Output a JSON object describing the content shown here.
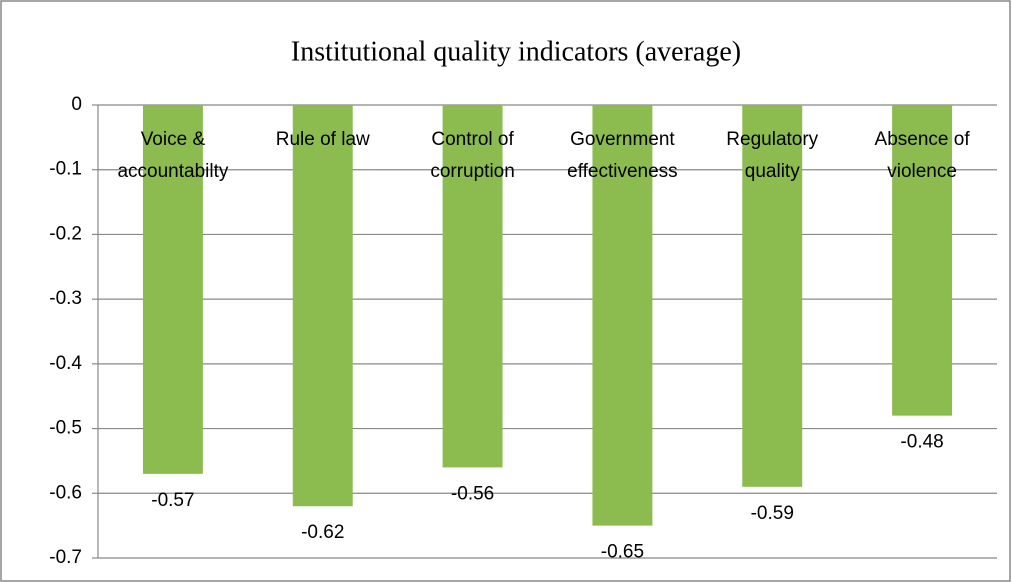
{
  "chart_data": {
    "type": "bar",
    "title": "Institutional quality indicators (average)",
    "categories": [
      "Voice &\naccountabilty",
      "Rule of law",
      "Control of\ncorruption",
      "Government\neffectiveness",
      "Regulatory\nquality",
      "Absence of\nviolence"
    ],
    "values": [
      -0.57,
      -0.62,
      -0.56,
      -0.65,
      -0.59,
      -0.48
    ],
    "color": "#8cbb50",
    "ylim": [
      -0.7,
      0
    ],
    "yticks": [
      0,
      -0.1,
      -0.2,
      -0.3,
      -0.4,
      -0.5,
      -0.6,
      -0.7
    ],
    "grid": true
  }
}
